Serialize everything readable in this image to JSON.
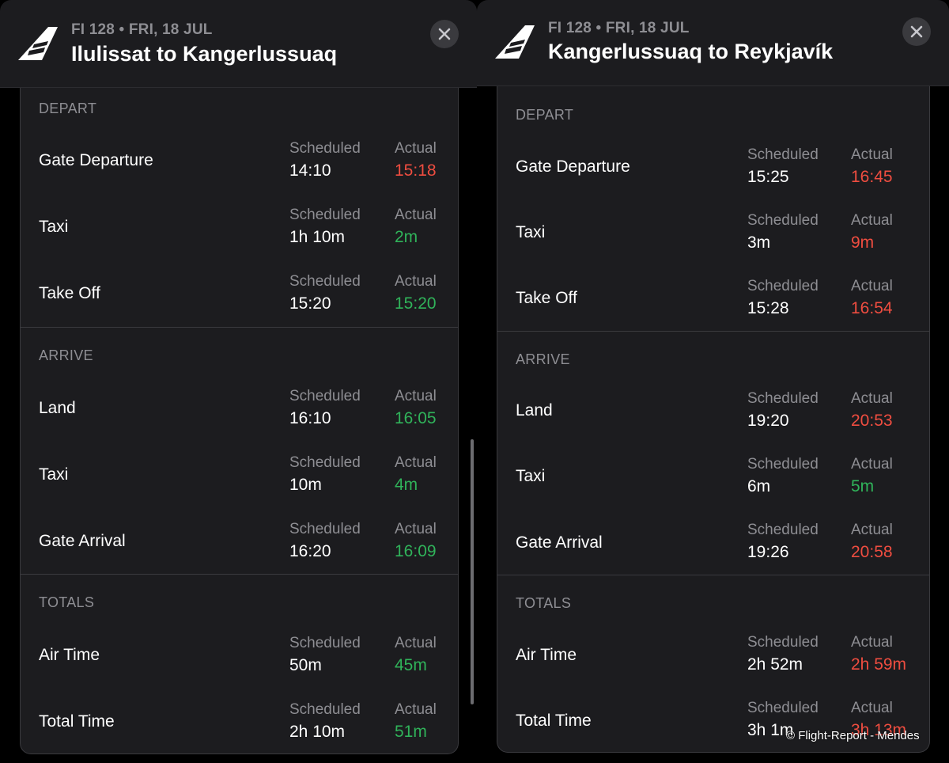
{
  "left_panel": {
    "flight_sub": "FI 128 • FRI, 18 JUL",
    "route_title": "Ilulissat to Kangerlussuaq",
    "depart": {
      "header": "DEPART",
      "rows": [
        {
          "label": "Gate Departure",
          "sched_head": "Scheduled",
          "sched": "14:10",
          "act_head": "Actual",
          "act": "15:18",
          "act_status": "late"
        },
        {
          "label": "Taxi",
          "sched_head": "Scheduled",
          "sched": "1h 10m",
          "act_head": "Actual",
          "act": "2m",
          "act_status": "ontime"
        },
        {
          "label": "Take Off",
          "sched_head": "Scheduled",
          "sched": "15:20",
          "act_head": "Actual",
          "act": "15:20",
          "act_status": "ontime"
        }
      ]
    },
    "arrive": {
      "header": "ARRIVE",
      "rows": [
        {
          "label": "Land",
          "sched_head": "Scheduled",
          "sched": "16:10",
          "act_head": "Actual",
          "act": "16:05",
          "act_status": "ontime"
        },
        {
          "label": "Taxi",
          "sched_head": "Scheduled",
          "sched": "10m",
          "act_head": "Actual",
          "act": "4m",
          "act_status": "ontime"
        },
        {
          "label": "Gate Arrival",
          "sched_head": "Scheduled",
          "sched": "16:20",
          "act_head": "Actual",
          "act": "16:09",
          "act_status": "ontime"
        }
      ]
    },
    "totals": {
      "header": "TOTALS",
      "rows": [
        {
          "label": "Air Time",
          "sched_head": "Scheduled",
          "sched": "50m",
          "act_head": "Actual",
          "act": "45m",
          "act_status": "ontime"
        },
        {
          "label": "Total Time",
          "sched_head": "Scheduled",
          "sched": "2h 10m",
          "act_head": "Actual",
          "act": "51m",
          "act_status": "ontime"
        }
      ]
    }
  },
  "right_panel": {
    "flight_sub": "FI 128 • FRI, 18 JUL",
    "route_title": "Kangerlussuaq to Reykjavík",
    "depart": {
      "header": "DEPART",
      "rows": [
        {
          "label": "Gate Departure",
          "sched_head": "Scheduled",
          "sched": "15:25",
          "act_head": "Actual",
          "act": "16:45",
          "act_status": "late"
        },
        {
          "label": "Taxi",
          "sched_head": "Scheduled",
          "sched": "3m",
          "act_head": "Actual",
          "act": "9m",
          "act_status": "late"
        },
        {
          "label": "Take Off",
          "sched_head": "Scheduled",
          "sched": "15:28",
          "act_head": "Actual",
          "act": "16:54",
          "act_status": "late"
        }
      ]
    },
    "arrive": {
      "header": "ARRIVE",
      "rows": [
        {
          "label": "Land",
          "sched_head": "Scheduled",
          "sched": "19:20",
          "act_head": "Actual",
          "act": "20:53",
          "act_status": "late"
        },
        {
          "label": "Taxi",
          "sched_head": "Scheduled",
          "sched": "6m",
          "act_head": "Actual",
          "act": "5m",
          "act_status": "ontime"
        },
        {
          "label": "Gate Arrival",
          "sched_head": "Scheduled",
          "sched": "19:26",
          "act_head": "Actual",
          "act": "20:58",
          "act_status": "late"
        }
      ]
    },
    "totals": {
      "header": "TOTALS",
      "rows": [
        {
          "label": "Air Time",
          "sched_head": "Scheduled",
          "sched": "2h 52m",
          "act_head": "Actual",
          "act": "2h 59m",
          "act_status": "late"
        },
        {
          "label": "Total Time",
          "sched_head": "Scheduled",
          "sched": "3h 1m",
          "act_head": "Actual",
          "act": "3h 13m",
          "act_status": "late"
        }
      ]
    }
  },
  "watermark": "© Flight-Report - Mendes",
  "icons": {
    "logo": "icelandair-tail-logo-icon",
    "close": "close-icon"
  },
  "colors": {
    "late": "#ef4d40",
    "ontime": "#30b35a",
    "panel_bg": "#1c1c1f",
    "secondary_text": "#8e8e93"
  }
}
